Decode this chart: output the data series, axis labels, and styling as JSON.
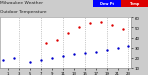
{
  "title_line1": "Milwaukee Weather",
  "title_line2": "Outdoor Temperature",
  "background_color": "#cccccc",
  "plot_bg_color": "#ffffff",
  "temp_color": "#dd0000",
  "dew_color": "#0000cc",
  "legend_temp_color": "#dd0000",
  "legend_dew_color": "#0000ff",
  "hours": [
    0,
    1,
    2,
    3,
    4,
    5,
    6,
    7,
    8,
    9,
    10,
    11,
    12,
    13,
    14,
    15,
    16,
    17,
    18,
    19,
    20,
    21,
    22,
    23
  ],
  "temp_values": [
    null,
    null,
    null,
    null,
    null,
    null,
    null,
    null,
    35,
    null,
    38,
    null,
    44,
    null,
    50,
    null,
    54,
    null,
    55,
    null,
    52,
    null,
    48,
    null
  ],
  "dew_values": [
    18,
    null,
    20,
    null,
    null,
    16,
    null,
    18,
    null,
    20,
    null,
    22,
    null,
    24,
    null,
    25,
    null,
    26,
    null,
    28,
    null,
    30,
    null,
    32
  ],
  "ylim": [
    10,
    60
  ],
  "ytick_values": [
    10,
    20,
    30,
    40,
    50,
    60
  ],
  "ytick_labels": [
    "10",
    "20",
    "30",
    "40",
    "50",
    "60"
  ],
  "xtick_values": [
    1,
    3,
    5,
    7,
    9,
    11,
    13,
    15,
    17,
    19,
    21,
    23
  ],
  "xtick_labels": [
    "1",
    "3",
    "5",
    "7",
    "9",
    "11",
    "13",
    "15",
    "17",
    "19",
    "21",
    "23"
  ],
  "marker_size": 3,
  "title_fontsize": 3.2,
  "tick_fontsize": 2.8,
  "grid_color": "#999999",
  "legend_label_temp": "Temp",
  "legend_label_dew": "Dew Pt",
  "grid_xticks": [
    3,
    7,
    11,
    15,
    19,
    23
  ]
}
